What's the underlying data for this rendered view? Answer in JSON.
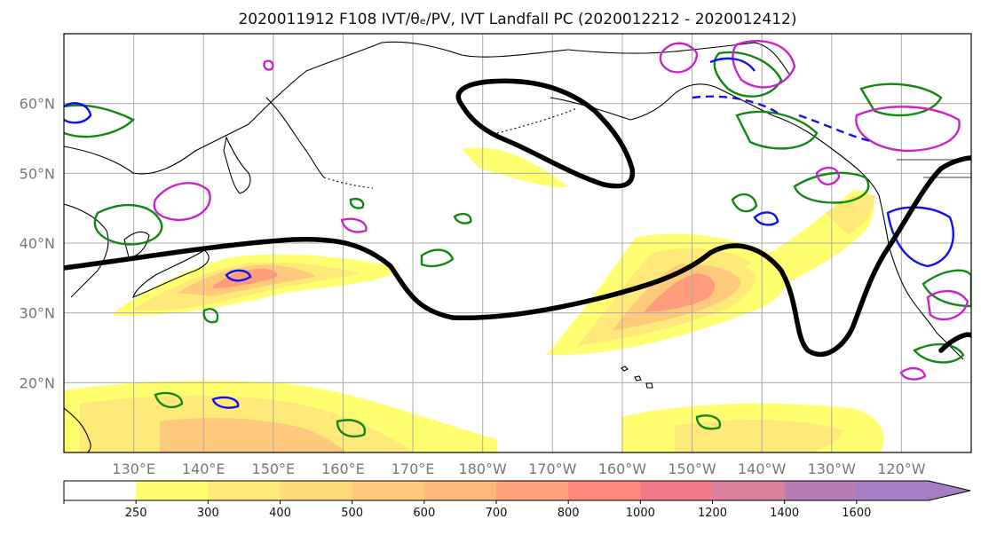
{
  "title": "2020011912 F108 IVT/θₑ/PV, IVT Landfall PC (2020012212 - 2020012412)",
  "map": {
    "lat_labels": [
      "60°N",
      "50°N",
      "40°N",
      "30°N",
      "20°N"
    ],
    "lon_labels": [
      "130°E",
      "140°E",
      "150°E",
      "160°E",
      "170°E",
      "180°W",
      "170°W",
      "160°W",
      "150°W",
      "140°W",
      "130°W",
      "120°W"
    ],
    "lat_range": [
      10,
      70
    ],
    "lon_range_east": [
      120,
      250
    ],
    "gridlines": true,
    "contour_colors": {
      "ivt_fill_low": "#ffff77",
      "ivt_fill_high": "#ff7f7f",
      "theta_e": "#118811",
      "pv_positive": "#cc22cc",
      "pv_negative": "#1111ee",
      "landfall_pc": "#000000",
      "coastline": "#000000"
    }
  },
  "colorbar": {
    "levels": [
      "250",
      "300",
      "400",
      "500",
      "600",
      "700",
      "800",
      "1000",
      "1200",
      "1400",
      "1600"
    ],
    "colors": [
      "#ffffff",
      "#ffff70",
      "#ffe978",
      "#ffd97a",
      "#ffc97c",
      "#ffb87c",
      "#ffa27c",
      "#ff8a7c",
      "#f07a86",
      "#d9809a",
      "#b77cb3",
      "#a57ec5"
    ],
    "extend": "max"
  }
}
